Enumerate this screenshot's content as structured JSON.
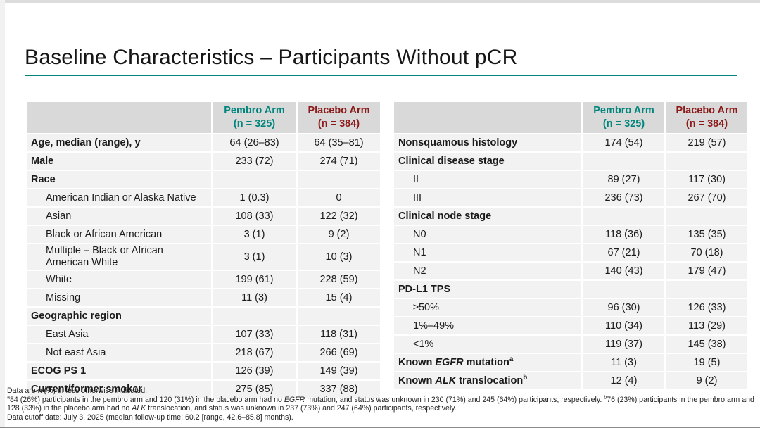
{
  "slide": {
    "title": "Baseline Characteristics – Participants Without pCR",
    "accent_color": "#00857C",
    "pembro_color": "#00857C",
    "placebo_color": "#8B1A1A",
    "header_bg": "#D9D9D9",
    "row_bg": "#F2F2F2"
  },
  "tables": [
    {
      "name": "baseline-table-left",
      "columns": [
        {
          "name": "Pembro Arm",
          "n": "(n = 325)",
          "color": "#00857C"
        },
        {
          "name": "Placebo Arm",
          "n": "(n = 384)",
          "color": "#8B1A1A"
        }
      ],
      "rows": [
        {
          "bold": true,
          "indent": 0,
          "label": [
            {
              "text": "Age, median (range), y"
            }
          ],
          "values": [
            "64 (26–83)",
            "64 (35–81)"
          ]
        },
        {
          "bold": true,
          "indent": 0,
          "label": [
            {
              "text": "Male"
            }
          ],
          "values": [
            "233 (72)",
            "274 (71)"
          ]
        },
        {
          "bold": true,
          "indent": 0,
          "label": [
            {
              "text": "Race"
            }
          ],
          "values": [
            "",
            ""
          ]
        },
        {
          "bold": false,
          "indent": 1,
          "label": [
            {
              "text": "American Indian or Alaska Native"
            }
          ],
          "values": [
            "1 (0.3)",
            "0"
          ]
        },
        {
          "bold": false,
          "indent": 1,
          "label": [
            {
              "text": "Asian"
            }
          ],
          "values": [
            "108 (33)",
            "122 (32)"
          ]
        },
        {
          "bold": false,
          "indent": 1,
          "label": [
            {
              "text": "Black or African American"
            }
          ],
          "values": [
            "3 (1)",
            "9 (2)"
          ]
        },
        {
          "bold": false,
          "indent": 1,
          "label": [
            {
              "text": "Multiple – Black or African",
              "br": true
            },
            {
              "text": "American White"
            }
          ],
          "values": [
            "3 (1)",
            "10 (3)"
          ]
        },
        {
          "bold": false,
          "indent": 1,
          "label": [
            {
              "text": "White"
            }
          ],
          "values": [
            "199 (61)",
            "228 (59)"
          ]
        },
        {
          "bold": false,
          "indent": 1,
          "label": [
            {
              "text": "Missing"
            }
          ],
          "values": [
            "11 (3)",
            "15 (4)"
          ]
        },
        {
          "bold": true,
          "indent": 0,
          "label": [
            {
              "text": "Geographic region"
            }
          ],
          "values": [
            "",
            ""
          ]
        },
        {
          "bold": false,
          "indent": 1,
          "label": [
            {
              "text": "East Asia"
            }
          ],
          "values": [
            "107 (33)",
            "118 (31)"
          ]
        },
        {
          "bold": false,
          "indent": 1,
          "label": [
            {
              "text": "Not east Asia"
            }
          ],
          "values": [
            "218 (67)",
            "266 (69)"
          ]
        },
        {
          "bold": true,
          "indent": 0,
          "label": [
            {
              "text": "ECOG PS 1"
            }
          ],
          "values": [
            "126 (39)",
            "149 (39)"
          ]
        },
        {
          "bold": true,
          "indent": 0,
          "label": [
            {
              "text": "Current/former smoker"
            }
          ],
          "values": [
            "275 (85)",
            "337 (88)"
          ]
        }
      ]
    },
    {
      "name": "baseline-table-right",
      "columns": [
        {
          "name": "Pembro Arm",
          "n": "(n = 325)",
          "color": "#00857C"
        },
        {
          "name": "Placebo Arm",
          "n": "(n = 384)",
          "color": "#8B1A1A"
        }
      ],
      "rows": [
        {
          "bold": true,
          "indent": 0,
          "label": [
            {
              "text": "Nonsquamous histology"
            }
          ],
          "values": [
            "174 (54)",
            "219 (57)"
          ]
        },
        {
          "bold": true,
          "indent": 0,
          "label": [
            {
              "text": "Clinical disease stage"
            }
          ],
          "values": [
            "",
            ""
          ]
        },
        {
          "bold": false,
          "indent": 1,
          "label": [
            {
              "text": "II"
            }
          ],
          "values": [
            "89 (27)",
            "117 (30)"
          ]
        },
        {
          "bold": false,
          "indent": 1,
          "label": [
            {
              "text": "III"
            }
          ],
          "values": [
            "236 (73)",
            "267 (70)"
          ]
        },
        {
          "bold": true,
          "indent": 0,
          "label": [
            {
              "text": "Clinical node stage"
            }
          ],
          "values": [
            "",
            ""
          ]
        },
        {
          "bold": false,
          "indent": 1,
          "label": [
            {
              "text": "N0"
            }
          ],
          "values": [
            "118 (36)",
            "135 (35)"
          ]
        },
        {
          "bold": false,
          "indent": 1,
          "label": [
            {
              "text": "N1"
            }
          ],
          "values": [
            "67 (21)",
            "70 (18)"
          ]
        },
        {
          "bold": false,
          "indent": 1,
          "label": [
            {
              "text": "N2"
            }
          ],
          "values": [
            "140 (43)",
            "179 (47)"
          ]
        },
        {
          "bold": true,
          "indent": 0,
          "label": [
            {
              "text": "PD-L1 TPS"
            }
          ],
          "values": [
            "",
            ""
          ]
        },
        {
          "bold": false,
          "indent": 1,
          "label": [
            {
              "text": "≥50%"
            }
          ],
          "values": [
            "96 (30)",
            "126 (33)"
          ]
        },
        {
          "bold": false,
          "indent": 1,
          "label": [
            {
              "text": "1%–49%"
            }
          ],
          "values": [
            "110 (34)",
            "113 (29)"
          ]
        },
        {
          "bold": false,
          "indent": 1,
          "label": [
            {
              "text": "<1%"
            }
          ],
          "values": [
            "119 (37)",
            "145 (38)"
          ]
        },
        {
          "bold": true,
          "indent": 0,
          "label": [
            {
              "text": "Known "
            },
            {
              "text": "EGFR",
              "italic": true
            },
            {
              "text": " mutation"
            },
            {
              "text": "a",
              "sup": true
            }
          ],
          "values": [
            "11 (3)",
            "19 (5)"
          ]
        },
        {
          "bold": true,
          "indent": 0,
          "label": [
            {
              "text": "Known "
            },
            {
              "text": "ALK",
              "italic": true
            },
            {
              "text": " translocation"
            },
            {
              "text": "b",
              "sup": true
            }
          ],
          "values": [
            "12 (4)",
            "9 (2)"
          ]
        }
      ]
    }
  ],
  "footnotes": [
    [
      {
        "text": "Data are n (%) unless otherwise indicated."
      }
    ],
    [
      {
        "text": "a",
        "sup": true
      },
      {
        "text": "84 (26%) participants in the pembro arm and 120 (31%) in the placebo arm had no "
      },
      {
        "text": "EGFR",
        "italic": true
      },
      {
        "text": " mutation, and status was unknown in 230 (71%) and 245 (64%) participants, respectively. "
      },
      {
        "text": "b",
        "sup": true
      },
      {
        "text": "76 (23%) participants in the pembro arm and 128 (33%) in the placebo arm had no "
      },
      {
        "text": "ALK",
        "italic": true
      },
      {
        "text": " translocation, and status was unknown in 237 (73%) and 247 (64%) participants, respectively."
      }
    ],
    [
      {
        "text": "Data cutoff date: July 3, 2025 (median follow-up time: 60.2 [range, 42.6–85.8] months)."
      }
    ]
  ]
}
